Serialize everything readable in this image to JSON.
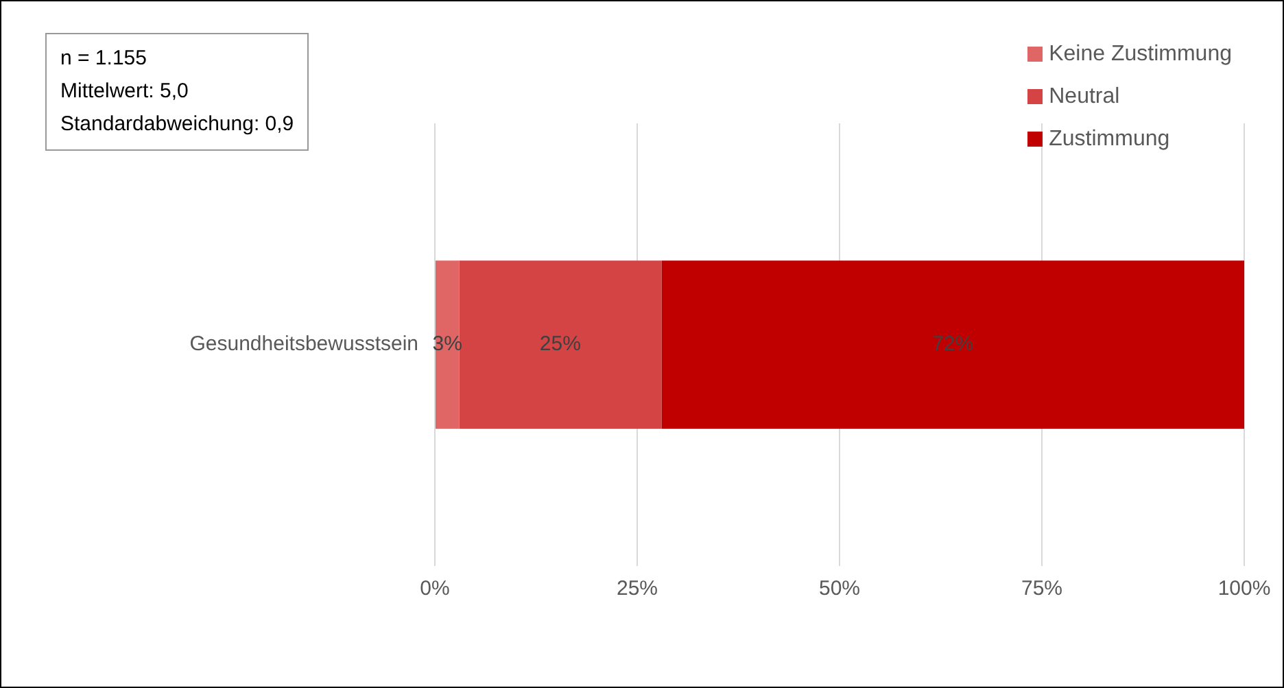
{
  "chart_data": {
    "type": "bar",
    "orientation": "horizontal",
    "stacked": true,
    "categories": [
      "Gesundheitsbewusstsein"
    ],
    "series": [
      {
        "name": "Keine Zustimmung",
        "color": "#e06666",
        "values": [
          3
        ],
        "value_labels": [
          "3%"
        ]
      },
      {
        "name": "Neutral",
        "color": "#d44444",
        "values": [
          25
        ],
        "value_labels": [
          "25%"
        ]
      },
      {
        "name": "Zustimmung",
        "color": "#c00000",
        "values": [
          72
        ],
        "value_labels": [
          "72%"
        ]
      }
    ],
    "xlim": [
      0,
      100
    ],
    "xticks": [
      {
        "value": 0,
        "label": "0%"
      },
      {
        "value": 25,
        "label": "25%"
      },
      {
        "value": 50,
        "label": "50%"
      },
      {
        "value": 75,
        "label": "75%"
      },
      {
        "value": 100,
        "label": "100%"
      }
    ],
    "grid": "x",
    "legend": "top right",
    "annotations": [
      "n = 1.155",
      "Mittelwert: 5,0",
      "Standardabweichung: 0,9"
    ]
  }
}
